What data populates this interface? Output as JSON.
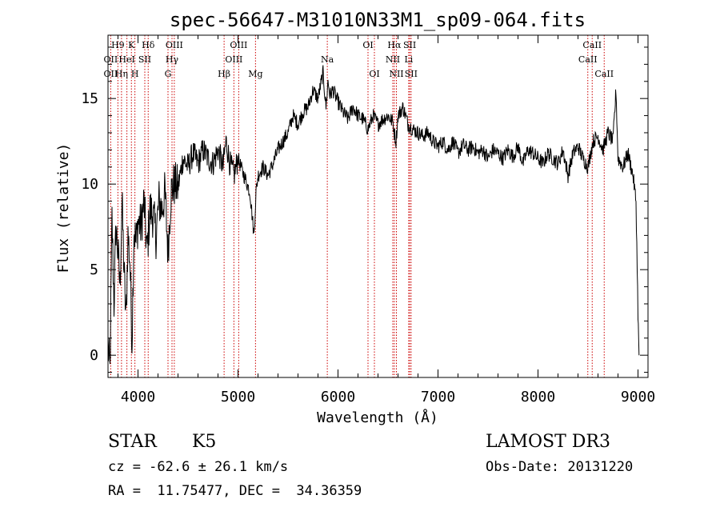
{
  "chart_data": {
    "type": "line",
    "title": "spec-56647-M31010N33M1_sp09-064.fits",
    "xlabel": "Wavelength (Å)",
    "ylabel": "Flux (relative)",
    "xlim": [
      3700,
      9100
    ],
    "ylim": [
      -1.3,
      18.7
    ],
    "x_ticks": [
      4000,
      5000,
      6000,
      7000,
      8000,
      9000
    ],
    "x_tick_labels": [
      "4000",
      "5000",
      "6000",
      "7000",
      "8000",
      "9000"
    ],
    "y_ticks": [
      0,
      5,
      10,
      15
    ],
    "y_tick_labels": [
      "0",
      "5",
      "10",
      "15"
    ],
    "series": [
      {
        "name": "flux",
        "color": "#000000",
        "x": [
          3700,
          3720,
          3740,
          3760,
          3780,
          3800,
          3820,
          3840,
          3860,
          3880,
          3900,
          3920,
          3940,
          3960,
          3980,
          4000,
          4030,
          4060,
          4090,
          4120,
          4150,
          4180,
          4210,
          4240,
          4270,
          4300,
          4330,
          4360,
          4400,
          4450,
          4500,
          4550,
          4600,
          4650,
          4700,
          4750,
          4800,
          4850,
          4880,
          4920,
          4960,
          5000,
          5040,
          5080,
          5120,
          5160,
          5180,
          5200,
          5250,
          5300,
          5350,
          5400,
          5450,
          5500,
          5550,
          5600,
          5650,
          5700,
          5750,
          5800,
          5850,
          5880,
          5900,
          5920,
          5950,
          6000,
          6050,
          6100,
          6150,
          6200,
          6250,
          6300,
          6350,
          6400,
          6450,
          6500,
          6550,
          6563,
          6580,
          6600,
          6650,
          6700,
          6750,
          6800,
          6850,
          6900,
          6950,
          7000,
          7050,
          7100,
          7150,
          7200,
          7250,
          7300,
          7350,
          7400,
          7450,
          7500,
          7550,
          7600,
          7650,
          7700,
          7750,
          7800,
          7850,
          7900,
          7950,
          8000,
          8050,
          8100,
          8150,
          8200,
          8250,
          8300,
          8350,
          8400,
          8450,
          8500,
          8550,
          8600,
          8650,
          8700,
          8750,
          8780,
          8800,
          8850,
          8900,
          8950,
          8980,
          9000,
          9010
        ],
        "values": [
          0.5,
          -1.0,
          8.0,
          3.0,
          7.5,
          6.0,
          4.0,
          9.0,
          5.0,
          2.0,
          7.0,
          5.5,
          0.8,
          7.5,
          6.5,
          7.8,
          7.5,
          9.0,
          6.0,
          8.5,
          8.2,
          7.0,
          9.0,
          8.5,
          9.5,
          6.0,
          9.5,
          10.0,
          9.8,
          11.5,
          11.0,
          11.8,
          11.2,
          12.0,
          11.5,
          11.2,
          12.0,
          11.0,
          12.5,
          11.2,
          10.5,
          11.5,
          10.8,
          10.2,
          9.5,
          7.0,
          9.5,
          10.5,
          11.0,
          10.5,
          11.2,
          12.0,
          12.5,
          13.0,
          14.0,
          13.5,
          14.2,
          14.5,
          15.5,
          15.0,
          16.5,
          14.5,
          16.0,
          15.2,
          15.5,
          14.8,
          14.2,
          13.8,
          14.5,
          14.0,
          13.8,
          13.2,
          14.0,
          13.5,
          13.8,
          14.0,
          13.6,
          13.0,
          12.5,
          14.0,
          14.5,
          13.5,
          13.2,
          13.0,
          12.8,
          13.0,
          12.5,
          12.2,
          12.5,
          12.0,
          12.5,
          11.8,
          12.3,
          12.0,
          12.2,
          11.8,
          12.0,
          11.5,
          12.0,
          11.8,
          11.5,
          12.0,
          11.6,
          12.2,
          11.2,
          12.0,
          11.8,
          11.5,
          11.2,
          11.8,
          11.5,
          11.2,
          12.0,
          10.5,
          11.8,
          12.2,
          11.5,
          11.0,
          12.5,
          12.8,
          12.0,
          13.0,
          12.5,
          15.5,
          11.5,
          11.0,
          11.8,
          10.5,
          9.0,
          2.5,
          0.0
        ]
      }
    ],
    "lines": [
      {
        "x": 3727,
        "labels": [
          "OII"
        ]
      },
      {
        "x": 3799,
        "labels": [
          "H9"
        ]
      },
      {
        "x": 3835,
        "labels": [
          "Hη"
        ]
      },
      {
        "x": 3889,
        "labels": [
          "HeI"
        ]
      },
      {
        "x": 3934,
        "labels": [
          "K"
        ]
      },
      {
        "x": 3969,
        "labels": [
          "H"
        ]
      },
      {
        "x": 4068,
        "labels": [
          "SII"
        ]
      },
      {
        "x": 4102,
        "labels": [
          "Hδ"
        ]
      },
      {
        "x": 4300,
        "labels": [
          "G"
        ]
      },
      {
        "x": 4340,
        "labels": [
          "Hγ"
        ]
      },
      {
        "x": 4363,
        "labels": [
          "OIII"
        ]
      },
      {
        "x": 4861,
        "labels": [
          "Hβ"
        ]
      },
      {
        "x": 4959,
        "labels": [
          "OIII"
        ]
      },
      {
        "x": 5007,
        "labels": [
          "OIII"
        ]
      },
      {
        "x": 5175,
        "labels": [
          "Mg"
        ]
      },
      {
        "x": 5893,
        "labels": [
          "Na"
        ]
      },
      {
        "x": 6300,
        "labels": [
          "OI"
        ]
      },
      {
        "x": 6364,
        "labels": [
          "OI"
        ]
      },
      {
        "x": 6548,
        "labels": [
          "NII"
        ]
      },
      {
        "x": 6563,
        "labels": [
          "Hα"
        ]
      },
      {
        "x": 6584,
        "labels": [
          "NII"
        ]
      },
      {
        "x": 6707,
        "labels": [
          "Li"
        ]
      },
      {
        "x": 6717,
        "labels": [
          "SII"
        ]
      },
      {
        "x": 6731,
        "labels": [
          "SII"
        ]
      },
      {
        "x": 8498,
        "labels": [
          "CaII"
        ]
      },
      {
        "x": 8542,
        "labels": [
          "CaII"
        ]
      },
      {
        "x": 8662,
        "labels": [
          "CaII"
        ]
      }
    ],
    "line_labels": [
      {
        "text": "H9",
        "x": 3799,
        "row": 0
      },
      {
        "text": "K",
        "x": 3934,
        "row": 0
      },
      {
        "text": "Hδ",
        "x": 4102,
        "row": 0
      },
      {
        "text": "OIII",
        "x": 4363,
        "row": 0
      },
      {
        "text": "OIII",
        "x": 5007,
        "row": 0
      },
      {
        "text": "OI",
        "x": 6300,
        "row": 0
      },
      {
        "text": "Hα",
        "x": 6563,
        "row": 0
      },
      {
        "text": "SII",
        "x": 6717,
        "row": 0
      },
      {
        "text": "CaII",
        "x": 8542,
        "row": 0
      },
      {
        "text": "OII",
        "x": 3727,
        "row": 1
      },
      {
        "text": "HeI",
        "x": 3889,
        "row": 1
      },
      {
        "text": "SII",
        "x": 4068,
        "row": 1
      },
      {
        "text": "Hγ",
        "x": 4340,
        "row": 1
      },
      {
        "text": "OIII",
        "x": 4959,
        "row": 1
      },
      {
        "text": "Na",
        "x": 5893,
        "row": 1
      },
      {
        "text": "NII",
        "x": 6548,
        "row": 1
      },
      {
        "text": "Li",
        "x": 6707,
        "row": 1
      },
      {
        "text": "CaII",
        "x": 8498,
        "row": 1
      },
      {
        "text": "OII",
        "x": 3727,
        "row": 2
      },
      {
        "text": "Hη",
        "x": 3835,
        "row": 2
      },
      {
        "text": "H",
        "x": 3969,
        "row": 2
      },
      {
        "text": "G",
        "x": 4300,
        "row": 2
      },
      {
        "text": "Hβ",
        "x": 4861,
        "row": 2
      },
      {
        "text": "Mg",
        "x": 5175,
        "row": 2
      },
      {
        "text": "OI",
        "x": 6364,
        "row": 2
      },
      {
        "text": "NII",
        "x": 6584,
        "row": 2
      },
      {
        "text": "SII",
        "x": 6731,
        "row": 2
      },
      {
        "text": "CaII",
        "x": 8662,
        "row": 2
      }
    ],
    "line_color": "#cc0000"
  },
  "info": {
    "object_class": "STAR",
    "subclass": "K5",
    "survey": "LAMOST DR3",
    "redshift": "cz = -62.6 ± 26.1 km/s",
    "obs_date": "Obs-Date: 20131220",
    "coords": "RA =  11.75477, DEC =  34.36359"
  }
}
